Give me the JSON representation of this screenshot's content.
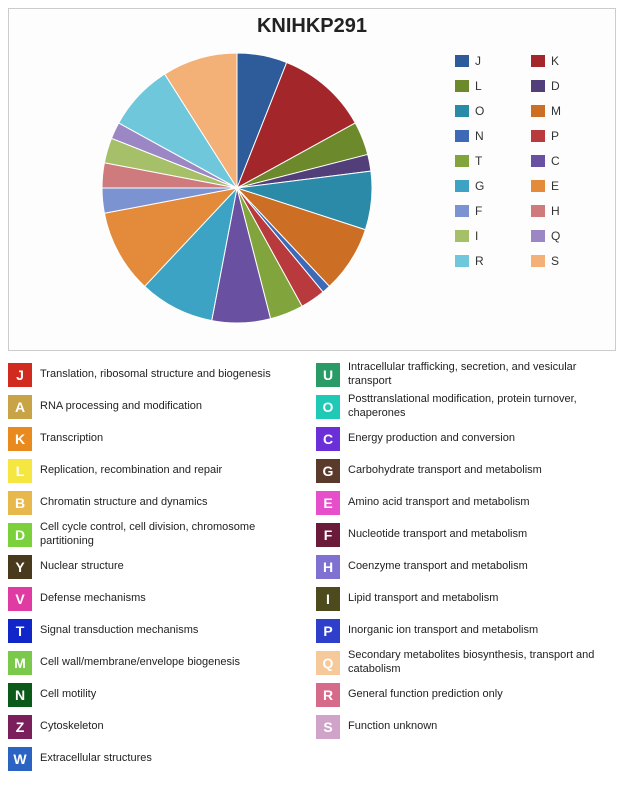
{
  "chart": {
    "title": "KNIHKP291",
    "title_fontsize": 20,
    "background_color": "#fdfdfd",
    "border_color": "#cccccc",
    "type": "pie",
    "slices": [
      {
        "letter": "J",
        "value": 6,
        "color": "#2e5b9a"
      },
      {
        "letter": "K",
        "value": 11,
        "color": "#a3272a"
      },
      {
        "letter": "L",
        "value": 4,
        "color": "#6c8a2b"
      },
      {
        "letter": "D",
        "value": 2,
        "color": "#523f7a"
      },
      {
        "letter": "O",
        "value": 7,
        "color": "#2b8aa8"
      },
      {
        "letter": "M",
        "value": 8,
        "color": "#cc6f25"
      },
      {
        "letter": "N",
        "value": 1,
        "color": "#3d69b7"
      },
      {
        "letter": "P",
        "value": 3,
        "color": "#b83a3d"
      },
      {
        "letter": "T",
        "value": 4,
        "color": "#81a53c"
      },
      {
        "letter": "C",
        "value": 7,
        "color": "#6a50a0"
      },
      {
        "letter": "G",
        "value": 9,
        "color": "#3da3c4"
      },
      {
        "letter": "E",
        "value": 10,
        "color": "#e38a3b"
      },
      {
        "letter": "F",
        "value": 3,
        "color": "#7c93d1"
      },
      {
        "letter": "H",
        "value": 3,
        "color": "#cf7a7c"
      },
      {
        "letter": "I",
        "value": 3,
        "color": "#a6c06a"
      },
      {
        "letter": "Q",
        "value": 2,
        "color": "#9b87c4"
      },
      {
        "letter": "R",
        "value": 8,
        "color": "#6ec7db"
      },
      {
        "letter": "S",
        "value": 9,
        "color": "#f3b077"
      }
    ],
    "legend": {
      "position": "right",
      "fontsize": 12,
      "swatch_w": 14,
      "swatch_h": 12,
      "items": [
        "J",
        "K",
        "L",
        "D",
        "O",
        "M",
        "N",
        "P",
        "T",
        "C",
        "G",
        "E",
        "F",
        "H",
        "I",
        "Q",
        "R",
        "S"
      ]
    },
    "pie_radius": 135
  },
  "cog_key": {
    "left": [
      {
        "letter": "J",
        "color": "#d12a1f",
        "text": "Translation, ribosomal structure and biogenesis"
      },
      {
        "letter": "A",
        "color": "#c9a447",
        "text": "RNA processing and modification"
      },
      {
        "letter": "K",
        "color": "#e98a1f",
        "text": "Transcription"
      },
      {
        "letter": "L",
        "color": "#f5e642",
        "text": "Replication, recombination and repair"
      },
      {
        "letter": "B",
        "color": "#e9b84d",
        "text": "Chromatin structure and dynamics"
      },
      {
        "letter": "D",
        "color": "#7bd13c",
        "text": "Cell cycle control, cell division, chromosome partitioning"
      },
      {
        "letter": "Y",
        "color": "#4a3a1d",
        "text": "Nuclear structure"
      },
      {
        "letter": "V",
        "color": "#e03ba3",
        "text": "Defense mechanisms"
      },
      {
        "letter": "T",
        "color": "#1026c9",
        "text": "Signal transduction mechanisms"
      },
      {
        "letter": "M",
        "color": "#7ac94a",
        "text": "Cell wall/membrane/envelope biogenesis"
      },
      {
        "letter": "N",
        "color": "#0a5a1a",
        "text": "Cell motility"
      },
      {
        "letter": "Z",
        "color": "#7a1f5c",
        "text": "Cytoskeleton"
      },
      {
        "letter": "W",
        "color": "#2b63c2",
        "text": "Extracellular structures"
      }
    ],
    "right": [
      {
        "letter": "U",
        "color": "#2a9a66",
        "text": "Intracellular trafficking, secretion, and vesicular transport"
      },
      {
        "letter": "O",
        "color": "#1fc9b6",
        "text": "Posttranslational modification, protein turnover, chaperones"
      },
      {
        "letter": "C",
        "color": "#6a2fd6",
        "text": "Energy production and conversion"
      },
      {
        "letter": "G",
        "color": "#5a3a2b",
        "text": "Carbohydrate transport and metabolism"
      },
      {
        "letter": "E",
        "color": "#e64fc9",
        "text": "Amino acid transport and metabolism"
      },
      {
        "letter": "F",
        "color": "#6a1b3a",
        "text": "Nucleotide transport and metabolism"
      },
      {
        "letter": "H",
        "color": "#7e71d1",
        "text": "Coenzyme transport and metabolism"
      },
      {
        "letter": "I",
        "color": "#4d4a1e",
        "text": "Lipid transport and metabolism"
      },
      {
        "letter": "P",
        "color": "#2e3fc9",
        "text": "Inorganic ion transport and metabolism"
      },
      {
        "letter": "Q",
        "color": "#f5c99a",
        "text": "Secondary metabolites biosynthesis, transport and catabolism"
      },
      {
        "letter": "R",
        "color": "#d66a8a",
        "text": "General function prediction only"
      },
      {
        "letter": "S",
        "color": "#d0a3c9",
        "text": "Function unknown"
      }
    ],
    "letter_box_size": 24,
    "letter_fontsize": 14,
    "text_fontsize": 11
  }
}
